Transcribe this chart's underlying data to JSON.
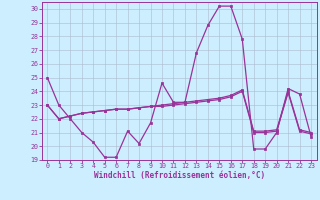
{
  "xlabel": "Windchill (Refroidissement éolien,°C)",
  "background_color": "#cceeff",
  "line_color": "#993399",
  "grid_color": "#aabbcc",
  "ylim": [
    19,
    30.5
  ],
  "xlim": [
    -0.5,
    23.5
  ],
  "yticks": [
    19,
    20,
    21,
    22,
    23,
    24,
    25,
    26,
    27,
    28,
    29,
    30
  ],
  "xticks": [
    0,
    1,
    2,
    3,
    4,
    5,
    6,
    7,
    8,
    9,
    10,
    11,
    12,
    13,
    14,
    15,
    16,
    17,
    18,
    19,
    20,
    21,
    22,
    23
  ],
  "series1": [
    25.0,
    23.0,
    22.0,
    21.0,
    20.3,
    19.2,
    19.2,
    21.1,
    20.2,
    21.7,
    24.6,
    23.2,
    23.2,
    26.8,
    28.8,
    30.2,
    30.2,
    27.8,
    19.8,
    19.8,
    21.0,
    24.2,
    23.8,
    20.7
  ],
  "series2": [
    23.0,
    22.0,
    22.2,
    22.4,
    22.5,
    22.6,
    22.7,
    22.7,
    22.8,
    22.9,
    22.9,
    23.0,
    23.1,
    23.2,
    23.3,
    23.4,
    23.6,
    24.0,
    21.0,
    21.0,
    21.1,
    23.9,
    21.1,
    20.9
  ],
  "series3": [
    23.0,
    22.0,
    22.2,
    22.4,
    22.5,
    22.6,
    22.7,
    22.7,
    22.8,
    22.9,
    23.0,
    23.1,
    23.2,
    23.3,
    23.4,
    23.5,
    23.7,
    24.1,
    21.1,
    21.1,
    21.2,
    24.0,
    21.2,
    21.0
  ]
}
